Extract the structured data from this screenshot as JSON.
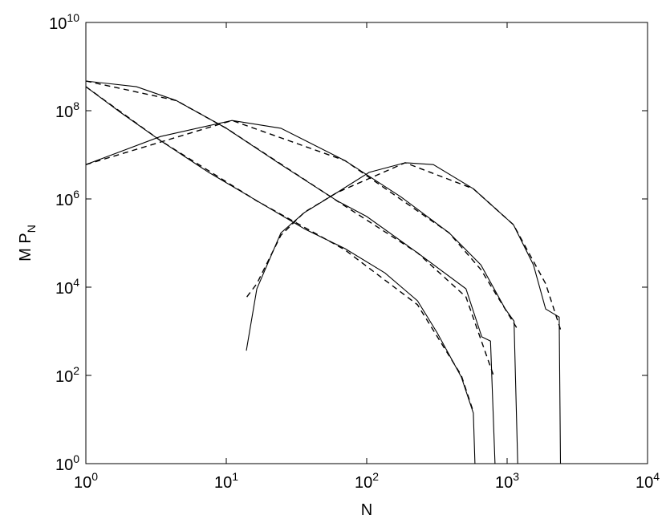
{
  "chart_data": {
    "type": "line",
    "xlabel": "N",
    "ylabel": "M P",
    "ylabel_subscript": "N",
    "xscale": "log",
    "yscale": "log",
    "xlim": [
      1,
      10000
    ],
    "ylim": [
      1,
      10000000000
    ],
    "xticks": [
      {
        "value": 1,
        "label": "10^0"
      },
      {
        "value": 10,
        "label": "10^1"
      },
      {
        "value": 100,
        "label": "10^2"
      },
      {
        "value": 1000,
        "label": "10^3"
      },
      {
        "value": 10000,
        "label": "10^4"
      }
    ],
    "yticks": [
      {
        "value": 1,
        "label": "10^0"
      },
      {
        "value": 100,
        "label": "10^2"
      },
      {
        "value": 10000,
        "label": "10^4"
      },
      {
        "value": 1000000,
        "label": "10^6"
      },
      {
        "value": 100000000,
        "label": "10^8"
      },
      {
        "value": 10000000000,
        "label": "10^10"
      }
    ],
    "grid": false,
    "series": [
      {
        "color": "#000000",
        "dash": false,
        "x": [
          1,
          1.76,
          3.4,
          7.5,
          16.5,
          36,
          70,
          135,
          230,
          318,
          472,
          575,
          590
        ],
        "values": [
          350000000,
          92000000,
          21000000,
          4000000,
          910000,
          210000,
          75000,
          21000,
          4900,
          920,
          92,
          14,
          1
        ]
      },
      {
        "color": "#000000",
        "dash": false,
        "x": [
          1,
          2.29,
          4.4,
          10,
          24.5,
          61.5,
          100,
          230,
          509,
          660,
          762,
          820
        ],
        "values": [
          470000000,
          350000000,
          170000000,
          40000000,
          6000000,
          910000,
          400000,
          60000,
          9200,
          750,
          600,
          1
        ]
      },
      {
        "color": "#000000",
        "dash": false,
        "x": [
          1,
          3.4,
          11,
          24.5,
          70,
          176,
          386,
          650,
          970,
          1120,
          1190
        ],
        "values": [
          6000000,
          26000000,
          60000000,
          40000000,
          7400000,
          1100000,
          170000,
          32000,
          3200,
          1700,
          1
        ]
      },
      {
        "color": "#000000",
        "dash": false,
        "x": [
          13.9,
          16.5,
          24.5,
          36,
          61.5,
          104,
          188,
          298,
          575,
          1110,
          1540,
          1880,
          2350,
          2400
        ],
        "values": [
          365,
          9200,
          170000,
          490000,
          1400000,
          4000000,
          6600000,
          6000000,
          1700000,
          260000,
          32000,
          3200,
          2100,
          1
        ]
      },
      {
        "color": "#000000",
        "dash": true,
        "x": [
          1,
          3.4,
          16.5,
          70,
          230,
          472,
          575
        ],
        "values": [
          350000000,
          21000000,
          900000,
          70000,
          4000,
          100,
          15
        ]
      },
      {
        "color": "#000000",
        "dash": true,
        "x": [
          1,
          4.4,
          10,
          61.5,
          230,
          509,
          800
        ],
        "values": [
          470000000,
          170000000,
          40000000,
          900000,
          60000,
          6000,
          100
        ]
      },
      {
        "color": "#000000",
        "dash": true,
        "x": [
          1,
          11,
          70,
          386,
          650,
          1190
        ],
        "values": [
          6000000,
          60000000,
          7400000,
          170000,
          25000,
          1100
        ]
      },
      {
        "color": "#000000",
        "dash": true,
        "x": [
          14,
          16.5,
          24.5,
          36,
          61.5,
          188,
          575,
          1110,
          1880,
          2400
        ],
        "values": [
          6000,
          12000,
          150000,
          500000,
          1400000,
          6600000,
          1700000,
          260000,
          12000,
          1100
        ]
      }
    ]
  }
}
